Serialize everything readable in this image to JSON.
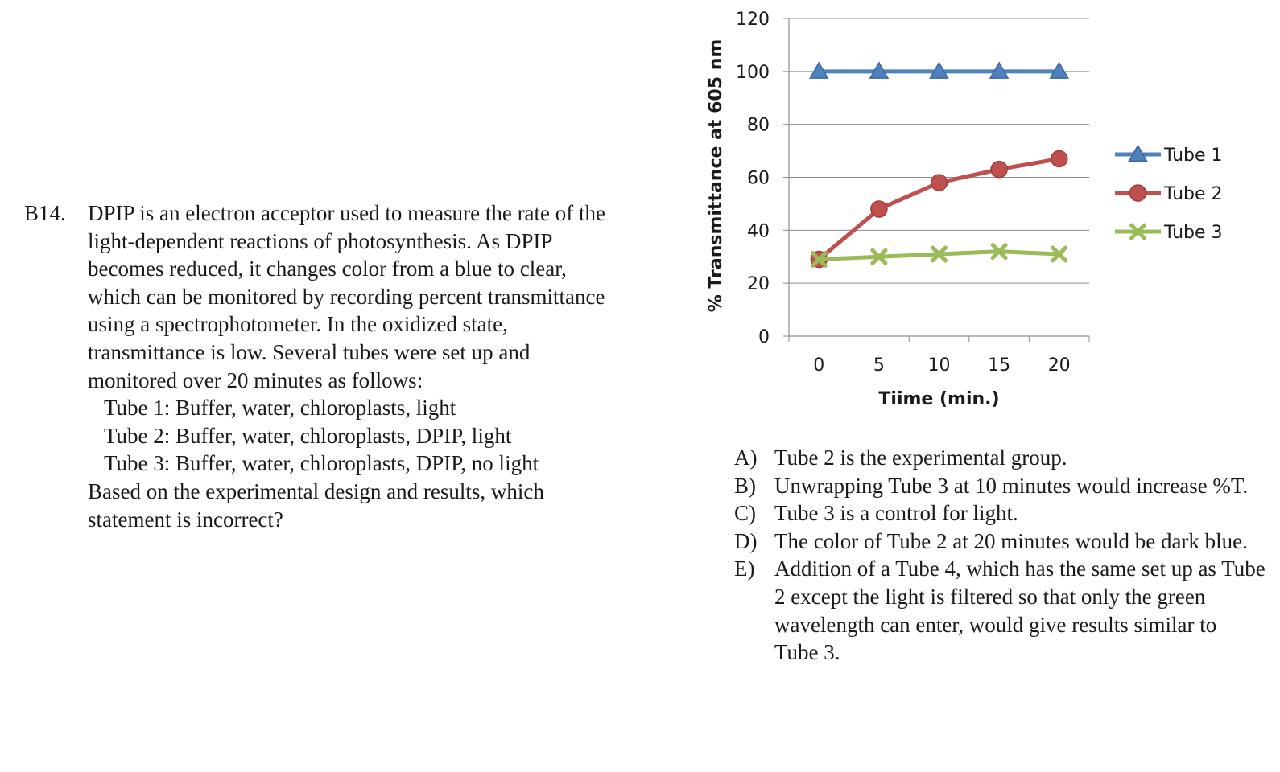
{
  "question": {
    "number": "B14.",
    "stem": "DPIP is an electron acceptor used to measure the rate of the light-dependent reactions of photosynthesis.  As DPIP becomes reduced, it changes color from a blue to clear, which can be monitored by recording percent transmittance using a spectrophotometer.  In the oxidized state, transmittance is low.  Several tubes were set up and monitored over 20 minutes as follows:",
    "tubes": [
      "Tube 1: Buffer, water, chloroplasts, light",
      "Tube 2: Buffer, water, chloroplasts, DPIP, light",
      "Tube 3: Buffer, water, chloroplasts, DPIP, no light"
    ],
    "prompt": "Based on the experimental design and results, which statement is incorrect?"
  },
  "answers": [
    {
      "letter": "A)",
      "text": "Tube 2 is the experimental group."
    },
    {
      "letter": "B)",
      "text": "Unwrapping Tube 3 at 10 minutes would increase %T."
    },
    {
      "letter": "C)",
      "text": "Tube 3 is a control for light."
    },
    {
      "letter": "D)",
      "text": "The color of Tube 2 at 20 minutes would be dark blue."
    },
    {
      "letter": "E)",
      "text": "Addition of a Tube 4, which has the same set up as Tube 2 except the light is filtered so that only the green wavelength can enter, would give results similar to Tube 3."
    }
  ],
  "chart_data": {
    "type": "line",
    "title": "",
    "xlabel": "Tiime (min.)",
    "ylabel": "% Transmittance at 605 nm",
    "categories": [
      "0",
      "5",
      "10",
      "15",
      "20"
    ],
    "ylim": [
      0,
      120
    ],
    "yticks": [
      0,
      20,
      40,
      60,
      80,
      100,
      120
    ],
    "grid": true,
    "legend": "right",
    "series": [
      {
        "name": "Tube 1",
        "values": [
          100,
          100,
          100,
          100,
          100
        ],
        "color": "#4f81bd",
        "marker": "triangle"
      },
      {
        "name": "Tube 2",
        "values": [
          29,
          48,
          58,
          63,
          67
        ],
        "color": "#c0504d",
        "marker": "circle"
      },
      {
        "name": "Tube 3",
        "values": [
          29,
          30,
          31,
          32,
          31
        ],
        "color": "#9bbb59",
        "marker": "x"
      }
    ]
  }
}
